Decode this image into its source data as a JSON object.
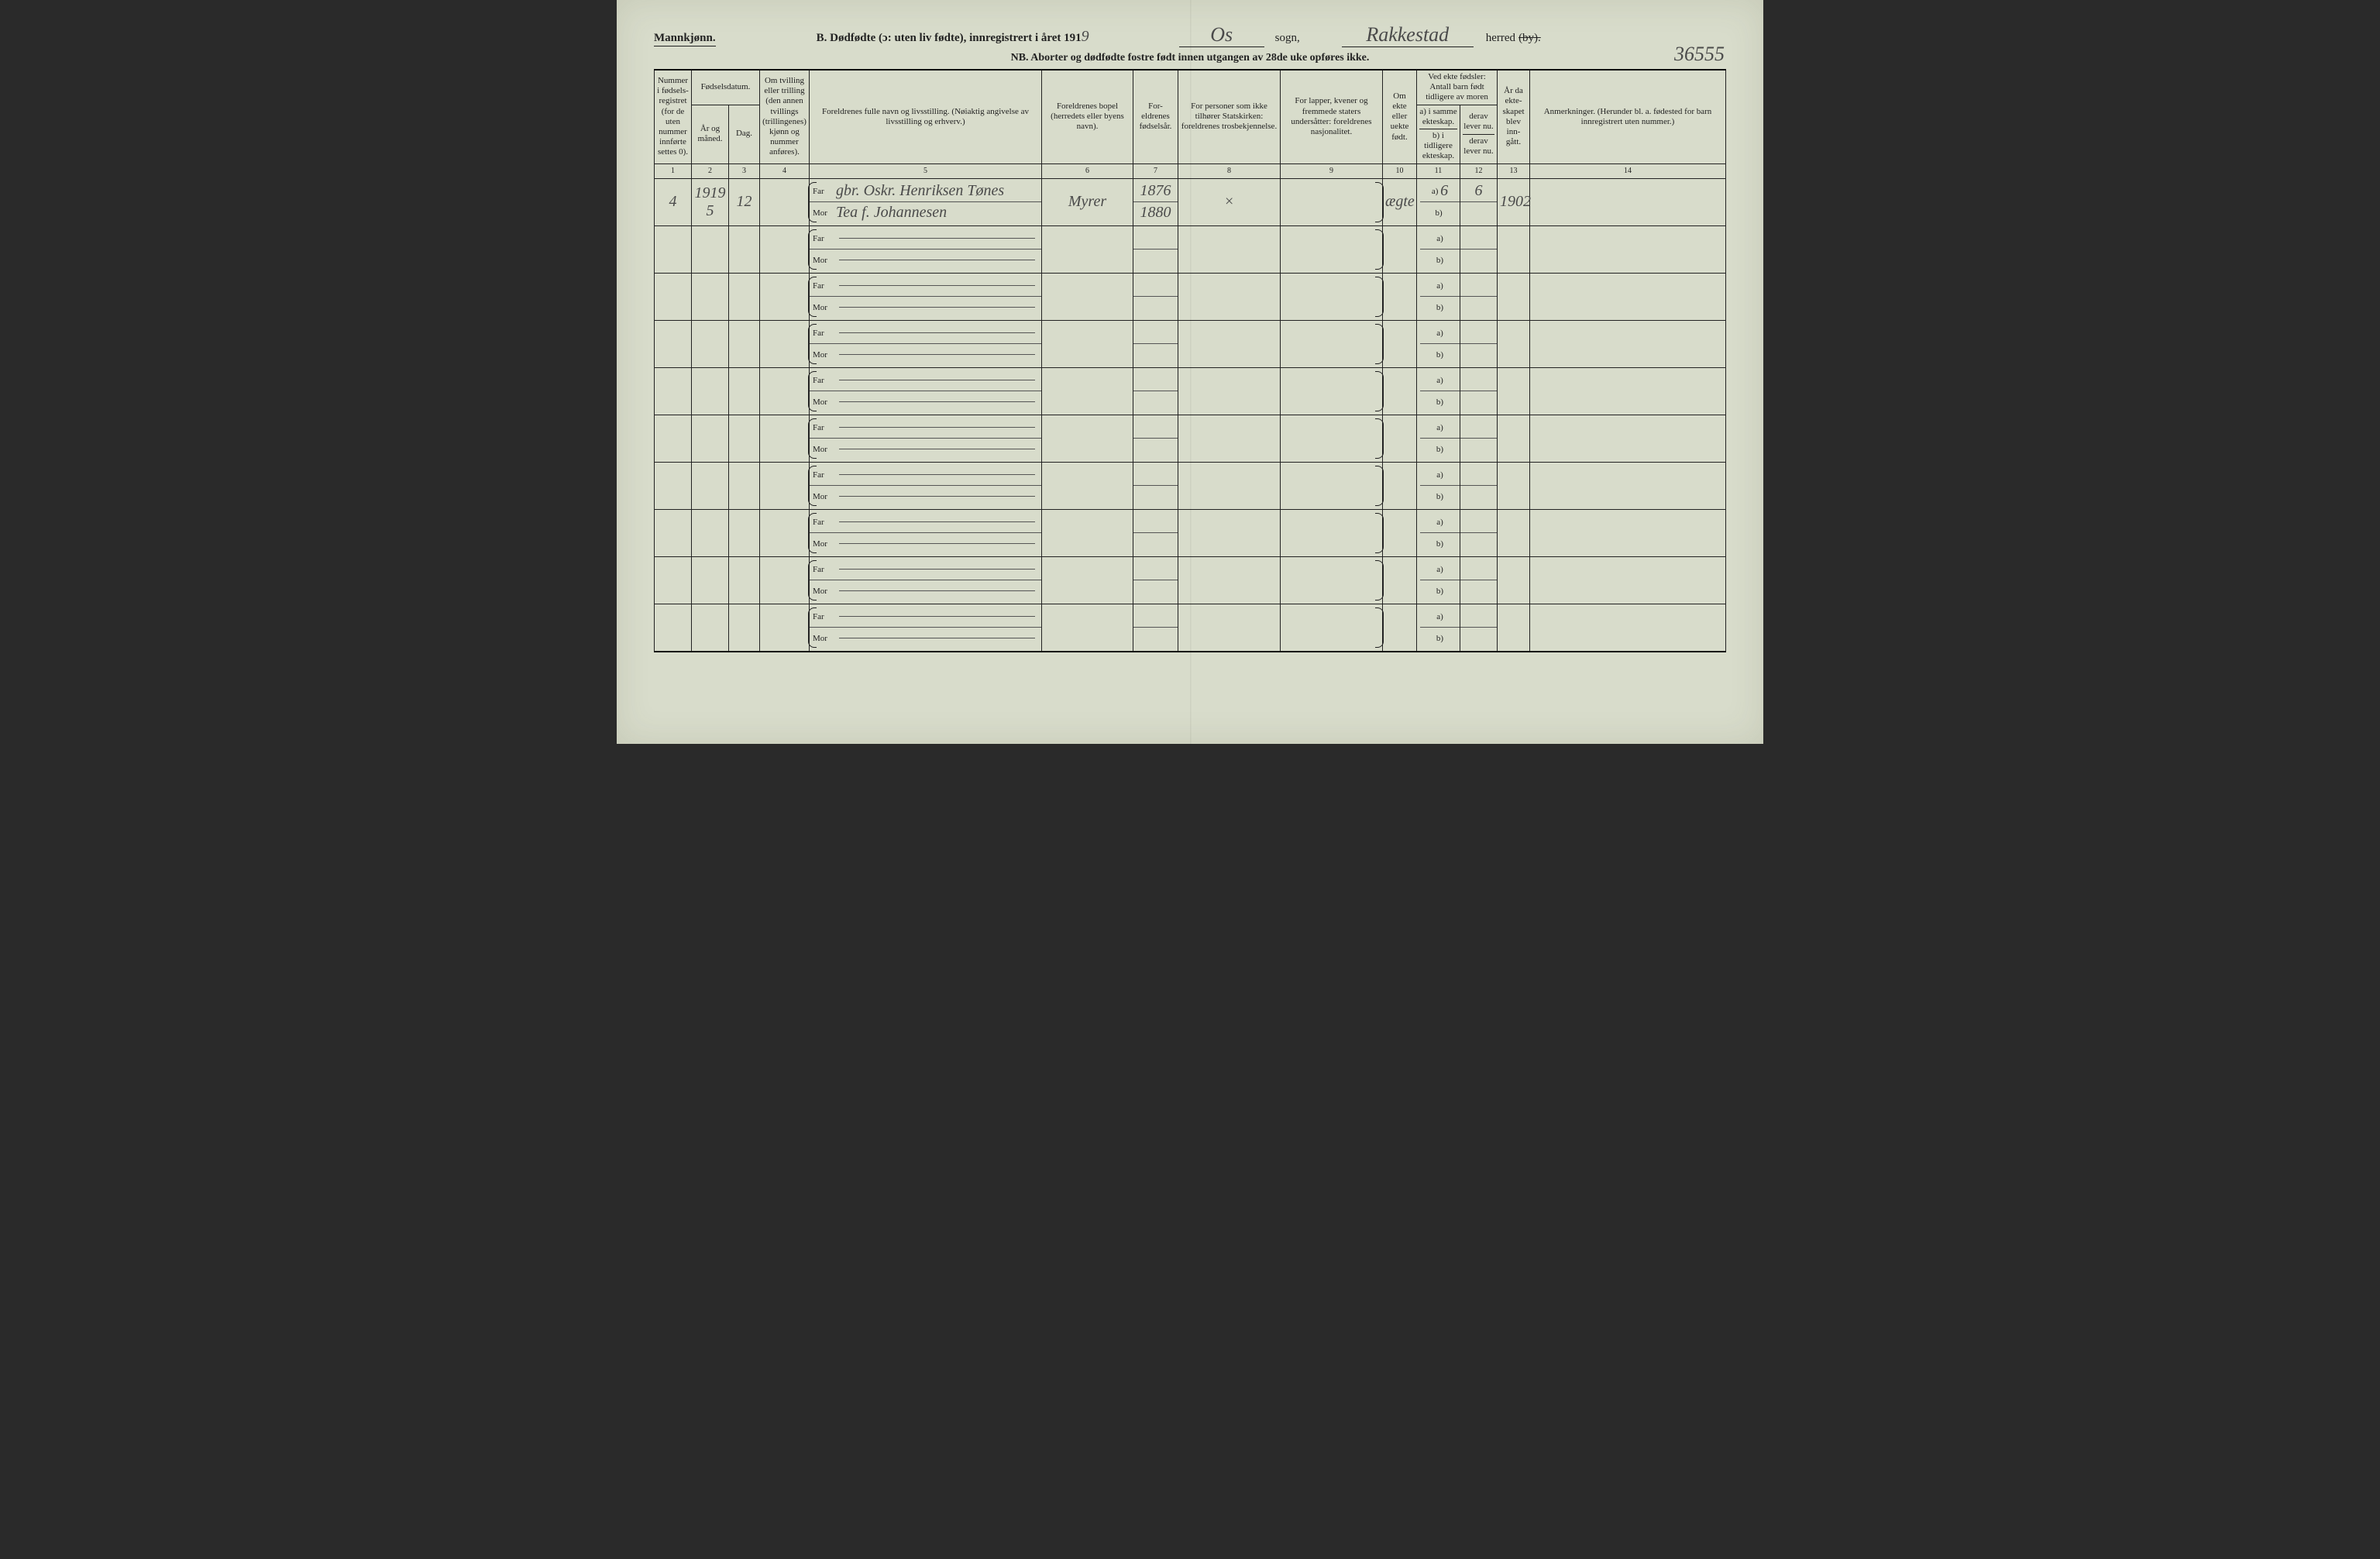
{
  "header": {
    "gender": "Mannkjønn.",
    "title_prefix": "B. Dødfødte (ɔ: uten liv fødte), innregistrert i året 191",
    "year_digit": "9",
    "sogn_value": "Os",
    "sogn_label": "sogn,",
    "herred_value": "Rakkestad",
    "herred_label": "herred",
    "herred_strike": "(by).",
    "nb": "NB. Aborter og dødfødte fostre født innen utgangen av 28de uke opføres ikke.",
    "page_number": "36555"
  },
  "columns": {
    "c1": "Nummer i fødsels-registret (for de uten nummer innførte settes 0).",
    "c_fd": "Fødselsdatum.",
    "c2": "År og måned.",
    "c3": "Dag.",
    "c4": "Om tvilling eller trilling (den annen tvillings (trillingenes) kjønn og nummer anføres).",
    "c5": "Foreldrenes fulle navn og livsstilling. (Nøiaktig angivelse av livsstilling og erhverv.)",
    "c6": "Foreldrenes bopel (herredets eller byens navn).",
    "c7": "For-eldrenes fødselsår.",
    "c8": "For personer som ikke tilhører Statskirken: foreldrenes trosbekjennelse.",
    "c9": "For lapper, kvener og fremmede staters undersåtter: foreldrenes nasjonalitet.",
    "c10": "Om ekte eller uekte født.",
    "c11_top": "Ved ekte fødsler: Antall barn født tidligere av moren",
    "c11a": "a) i samme ekteskap.",
    "c11b": "b) i tidligere ekteskap.",
    "c12a": "derav lever nu.",
    "c12b": "derav lever nu.",
    "c13": "År da ekte-skapet blev inn-gått.",
    "c14": "Anmerkninger. (Herunder bl. a. fødested for barn innregistrert uten nummer.)"
  },
  "colnums": [
    "1",
    "2",
    "3",
    "4",
    "5",
    "6",
    "7",
    "8",
    "9",
    "10",
    "11",
    "12",
    "13",
    "14"
  ],
  "parent_labels": {
    "far": "Far",
    "mor": "Mor"
  },
  "ab_labels": {
    "a": "a)",
    "b": "b)"
  },
  "entry": {
    "nummer": "4",
    "aar_maaned": "1919  5",
    "dag": "12",
    "tvilling": "",
    "far_navn": "gbr. Oskr. Henriksen Tønes",
    "mor_navn": "Tea f. Johannesen",
    "bopel": "Myrer",
    "far_aar": "1876",
    "mor_aar": "1880",
    "tros": "×",
    "nasj": "",
    "ekte": "ægte",
    "ant_a": "6",
    "lever_a": "6",
    "ant_b": "",
    "lever_b": "",
    "ekteskap_aar": "1902",
    "anm": ""
  },
  "blank_rows": 9,
  "colors": {
    "paper": "#d8dccb",
    "ink": "#222222",
    "hand": "#4a4a4a"
  }
}
